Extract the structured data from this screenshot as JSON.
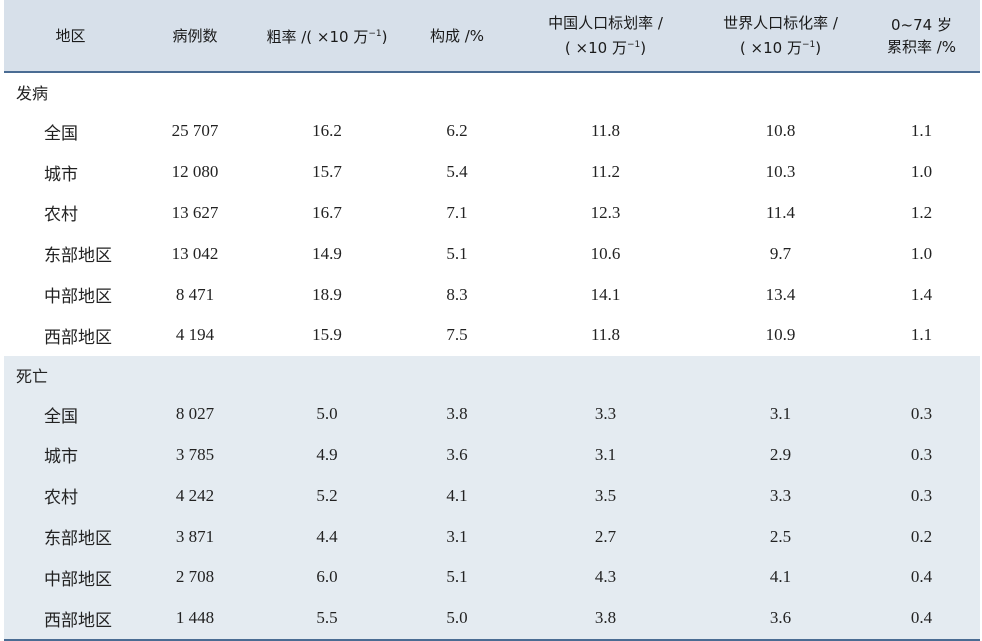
{
  "header": {
    "c0": "地区",
    "c1": "病例数",
    "c2_main": "粗率 /( ×10 万",
    "c2_sup": "−1",
    "c2_end": ")",
    "c3": "构成 /%",
    "c4_line1": "中国人口标划率 /",
    "c4_line2": "( ×10 万",
    "c4_sup": "−1",
    "c4_end": ")",
    "c5_line1": "世界人口标化率 /",
    "c5_line2": "( ×10 万",
    "c5_sup": "−1",
    "c5_end": ")",
    "c6_line1": "0~74 岁",
    "c6_line2": "累积率 /%"
  },
  "incidence": {
    "title": "发病",
    "rows": [
      [
        "全国",
        "25 707",
        "16.2",
        "6.2",
        "11.8",
        "10.8",
        "1.1"
      ],
      [
        "城市",
        "12 080",
        "15.7",
        "5.4",
        "11.2",
        "10.3",
        "1.0"
      ],
      [
        "农村",
        "13 627",
        "16.7",
        "7.1",
        "12.3",
        "11.4",
        "1.2"
      ],
      [
        "东部地区",
        "13 042",
        "14.9",
        "5.1",
        "10.6",
        "9.7",
        "1.0"
      ],
      [
        "中部地区",
        "8 471",
        "18.9",
        "8.3",
        "14.1",
        "13.4",
        "1.4"
      ],
      [
        "西部地区",
        "4 194",
        "15.9",
        "7.5",
        "11.8",
        "10.9",
        "1.1"
      ]
    ]
  },
  "death": {
    "title": "死亡",
    "rows": [
      [
        "全国",
        "8 027",
        "5.0",
        "3.8",
        "3.3",
        "3.1",
        "0.3"
      ],
      [
        "城市",
        "3 785",
        "4.9",
        "3.6",
        "3.1",
        "2.9",
        "0.3"
      ],
      [
        "农村",
        "4 242",
        "5.2",
        "4.1",
        "3.5",
        "3.3",
        "0.3"
      ],
      [
        "东部地区",
        "3 871",
        "4.4",
        "3.1",
        "2.7",
        "2.5",
        "0.2"
      ],
      [
        "中部地区",
        "2 708",
        "6.0",
        "5.1",
        "4.3",
        "4.1",
        "0.4"
      ],
      [
        "西部地区",
        "1 448",
        "5.5",
        "5.0",
        "3.8",
        "3.6",
        "0.4"
      ]
    ]
  }
}
